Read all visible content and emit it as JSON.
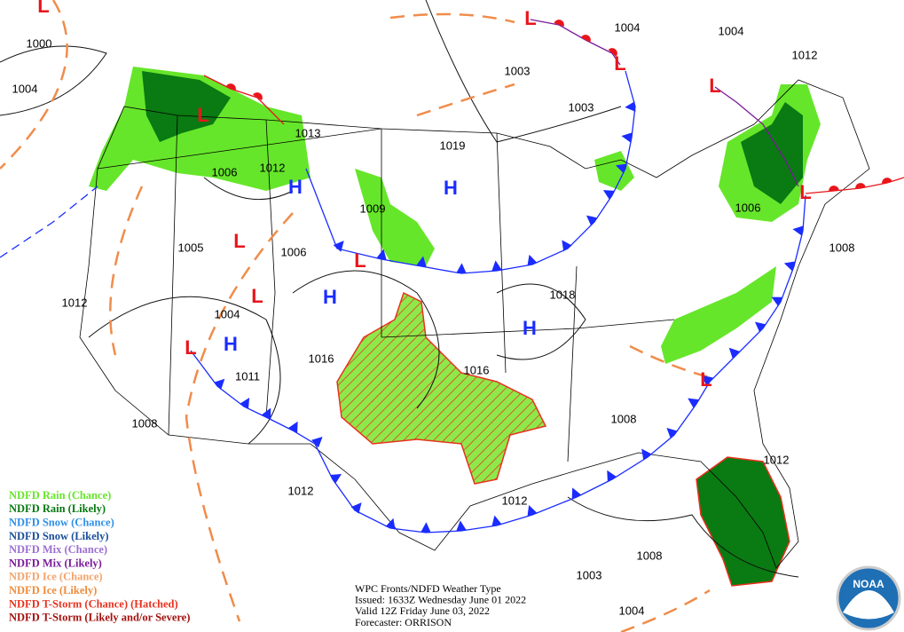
{
  "pressure_labels": [
    "1000",
    "1004",
    "1004",
    "1004",
    "1012",
    "1003",
    "1003",
    "1013",
    "1019",
    "1006",
    "1012",
    "1009",
    "1006",
    "1005",
    "1006",
    "1008",
    "1018",
    "1012",
    "1004",
    "1016",
    "1016",
    "1011",
    "1008",
    "1008",
    "1012",
    "1012",
    "1012",
    "1008",
    "1003",
    "1004"
  ],
  "highs": [
    "H",
    "H",
    "H",
    "H",
    "H"
  ],
  "lows": [
    "L",
    "L",
    "L",
    "L",
    "L",
    "L",
    "L",
    "L",
    "L",
    "L",
    "L"
  ],
  "legend": [
    {
      "label": "NDFD Rain (Chance)",
      "color": "#66e62a"
    },
    {
      "label": "NDFD Rain (Likely)",
      "color": "#0a7a12"
    },
    {
      "label": "NDFD Snow (Chance)",
      "color": "#2f8fe8"
    },
    {
      "label": "NDFD Snow (Likely)",
      "color": "#1a4f9c"
    },
    {
      "label": "NDFD Mix (Chance)",
      "color": "#9b6fd1"
    },
    {
      "label": "NDFD Mix (Likely)",
      "color": "#7a1a9a"
    },
    {
      "label": "NDFD Ice (Chance)",
      "color": "#f2a46b"
    },
    {
      "label": "NDFD Ice (Likely)",
      "color": "#ef8c3a"
    },
    {
      "label": "NDFD T-Storm (Chance) (Hatched)",
      "color": "#e8321e"
    },
    {
      "label": "NDFD T-Storm (Likely and/or Severe)",
      "color": "#a3120f"
    }
  ],
  "info": [
    "WPC Fronts/NDFD Weather Type",
    "Issued: 1633Z Wednesday June 01 2022",
    "Valid 12Z Friday June 03, 2022",
    "Forecaster: ORRISON"
  ],
  "logo": "NOAA"
}
